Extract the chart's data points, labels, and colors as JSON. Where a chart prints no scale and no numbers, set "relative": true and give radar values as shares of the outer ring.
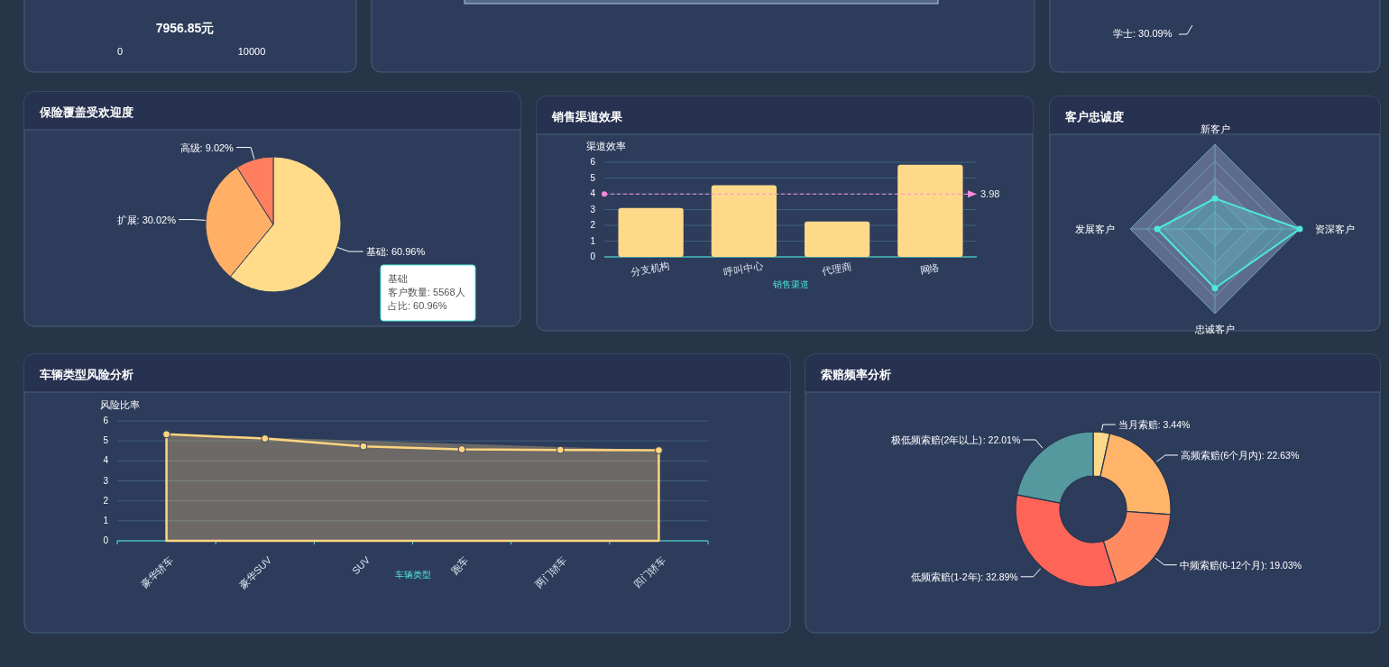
{
  "chart_data": [
    {
      "type": "other",
      "annotations": [
        "7956.85元",
        "0",
        "10000"
      ]
    },
    {
      "type": "other",
      "annotations": [
        "学士: 30.09%"
      ]
    },
    {
      "type": "pie",
      "title": "保险覆盖受欢迎度",
      "categories": [
        "基础",
        "扩展",
        "高级"
      ],
      "values": [
        60.96,
        30.02,
        9.02
      ],
      "colors": [
        "#ffdb8a",
        "#ffb066",
        "#ff7f5e"
      ],
      "value_labels": [
        ": 60.96%",
        ": 30.02%",
        ": 9.02%"
      ],
      "annotations": [
        "基础",
        "客户数量: 5568人",
        "占比: 60.96%"
      ]
    },
    {
      "type": "bar",
      "title": "销售渠道效果",
      "categories": [
        "分支机构",
        "呼叫中心",
        "代理商",
        "网络"
      ],
      "values": [
        3.1,
        4.55,
        2.25,
        5.85
      ],
      "color": "#ffd98a",
      "ylabel": "渠道效率",
      "xlabel": "销售渠道",
      "ylim": [
        0,
        6
      ],
      "yticks": [
        0,
        1,
        2,
        3,
        4,
        5,
        6
      ],
      "grid": "y",
      "ref_lines": [
        {
          "axis": "y",
          "value": 3.98,
          "label": "3.98",
          "color": "#ff8ad8",
          "line_style": "dashed"
        }
      ]
    },
    {
      "type": "radar",
      "title": "客户忠诚度",
      "categories": [
        "新客户",
        "资深客户",
        "忠诚客户",
        "发展客户"
      ],
      "relative": true,
      "marker": "circle",
      "series": [
        {
          "color": "#4ee8d8",
          "values": [
            0.36,
            1.0,
            0.7,
            0.68
          ]
        }
      ]
    },
    {
      "type": "area",
      "title": "车辆类型风险分析",
      "categories": [
        "豪华轿车",
        "豪华SUV",
        "SUV",
        "跑车",
        "两门轿车",
        "四门轿车"
      ],
      "ylabel": "风险比率",
      "xlabel": "车辆类型",
      "ylim": [
        0,
        6
      ],
      "yticks": [
        0,
        1,
        2,
        3,
        4,
        5,
        6
      ],
      "grid": "y",
      "marker": "circle",
      "series": [
        {
          "color": "#ffd580",
          "values": [
            5.33,
            5.12,
            4.73,
            4.58,
            4.55,
            4.53
          ]
        }
      ]
    },
    {
      "type": "donut",
      "title": "索赔频率分析",
      "categories": [
        "当月索赔",
        "高频索赔(6个月内)",
        "中频索赔(6-12个月)",
        "低频索赔(1-2年)",
        "极低频索赔(2年以上)"
      ],
      "values": [
        3.44,
        22.63,
        19.03,
        32.89,
        22.01
      ],
      "colors": [
        "#ffd98a",
        "#ffb469",
        "#ff8c61",
        "#ff6459",
        "#55999f"
      ],
      "value_labels": [
        ": 3.44%",
        ": 22.63%",
        ": 19.03%",
        ": 32.89%",
        ": 22.01%"
      ]
    }
  ]
}
